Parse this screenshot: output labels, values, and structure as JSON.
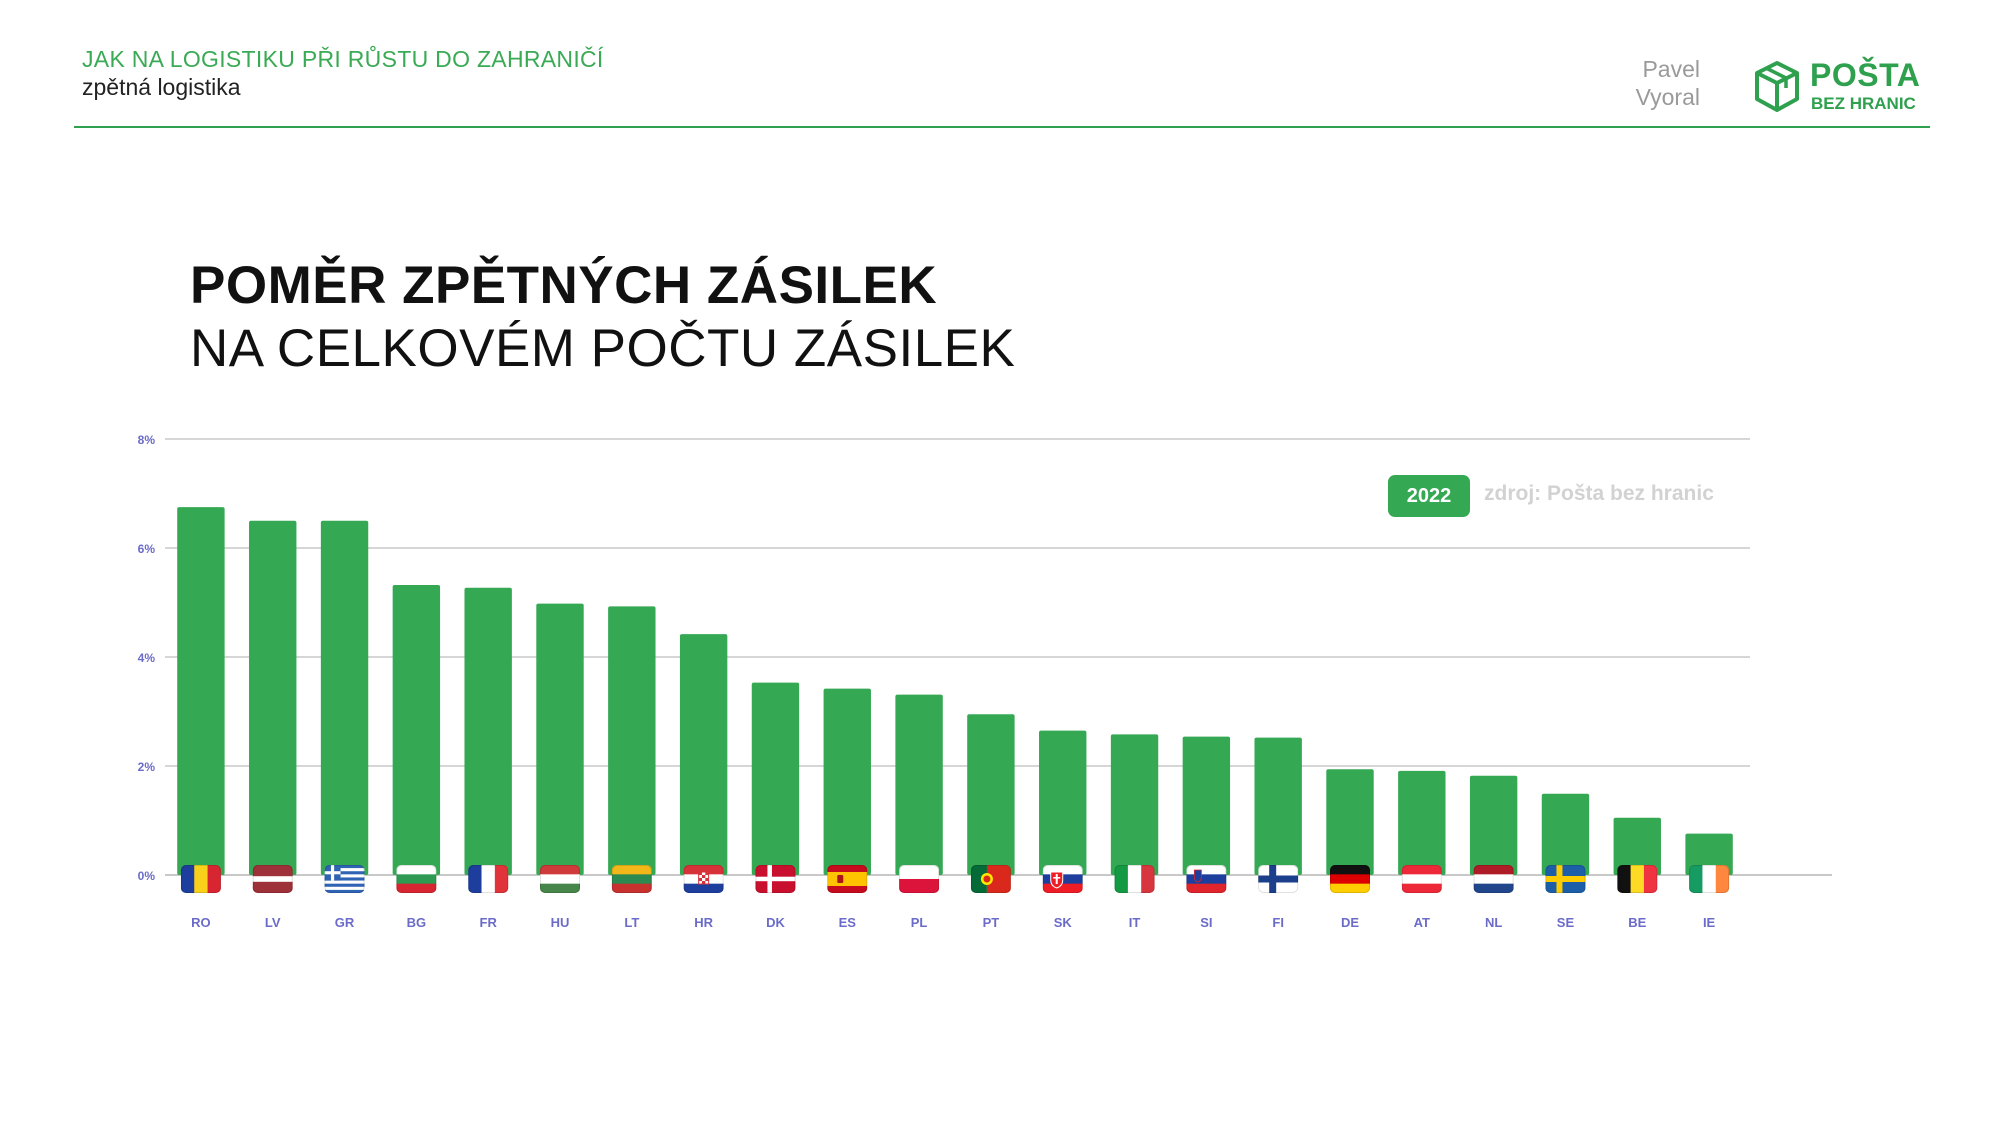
{
  "header": {
    "title": "JAK NA LOGISTIKU PŘI RŮSTU DO ZAHRANIČÍ",
    "subtitle": "zpětná logistika",
    "author_first": "Pavel",
    "author_last": "Vyoral"
  },
  "logo": {
    "main": "POŠTA",
    "sub": "BEZ HRANIC",
    "icon": "box-icon"
  },
  "slide": {
    "title_line1": "POMĚR ZPĚTNÝCH ZÁSILEK",
    "title_line2": "NA CELKOVÉM POČTU ZÁSILEK"
  },
  "badge": {
    "year": "2022"
  },
  "source": "zdroj: Pošta bez hranic",
  "colors": {
    "accent": "#2fa04d",
    "bar": "#35a853",
    "tick": "#6b6bc9",
    "grid": "#c8c8c8"
  },
  "chart_data": {
    "type": "bar",
    "categories": [
      "RO",
      "LV",
      "GR",
      "BG",
      "FR",
      "HU",
      "LT",
      "HR",
      "DK",
      "ES",
      "PL",
      "PT",
      "SK",
      "IT",
      "SI",
      "FI",
      "DE",
      "AT",
      "NL",
      "SE",
      "BE",
      "IE"
    ],
    "values": [
      6.75,
      6.5,
      6.5,
      5.32,
      5.27,
      4.98,
      4.93,
      4.42,
      3.53,
      3.42,
      3.31,
      2.95,
      2.65,
      2.58,
      2.54,
      2.52,
      1.94,
      1.91,
      1.82,
      1.49,
      1.05,
      0.76
    ],
    "y_ticks": [
      "0%",
      "2%",
      "4%",
      "6%",
      "8%"
    ],
    "ylim": [
      0,
      8
    ],
    "grid": true,
    "flags": [
      "flag-ro",
      "flag-lv",
      "flag-gr",
      "flag-bg",
      "flag-fr",
      "flag-hu",
      "flag-lt",
      "flag-hr",
      "flag-dk",
      "flag-es",
      "flag-pl",
      "flag-pt",
      "flag-sk",
      "flag-it",
      "flag-si",
      "flag-fi",
      "flag-de",
      "flag-at",
      "flag-nl",
      "flag-se",
      "flag-be",
      "flag-ie"
    ]
  }
}
